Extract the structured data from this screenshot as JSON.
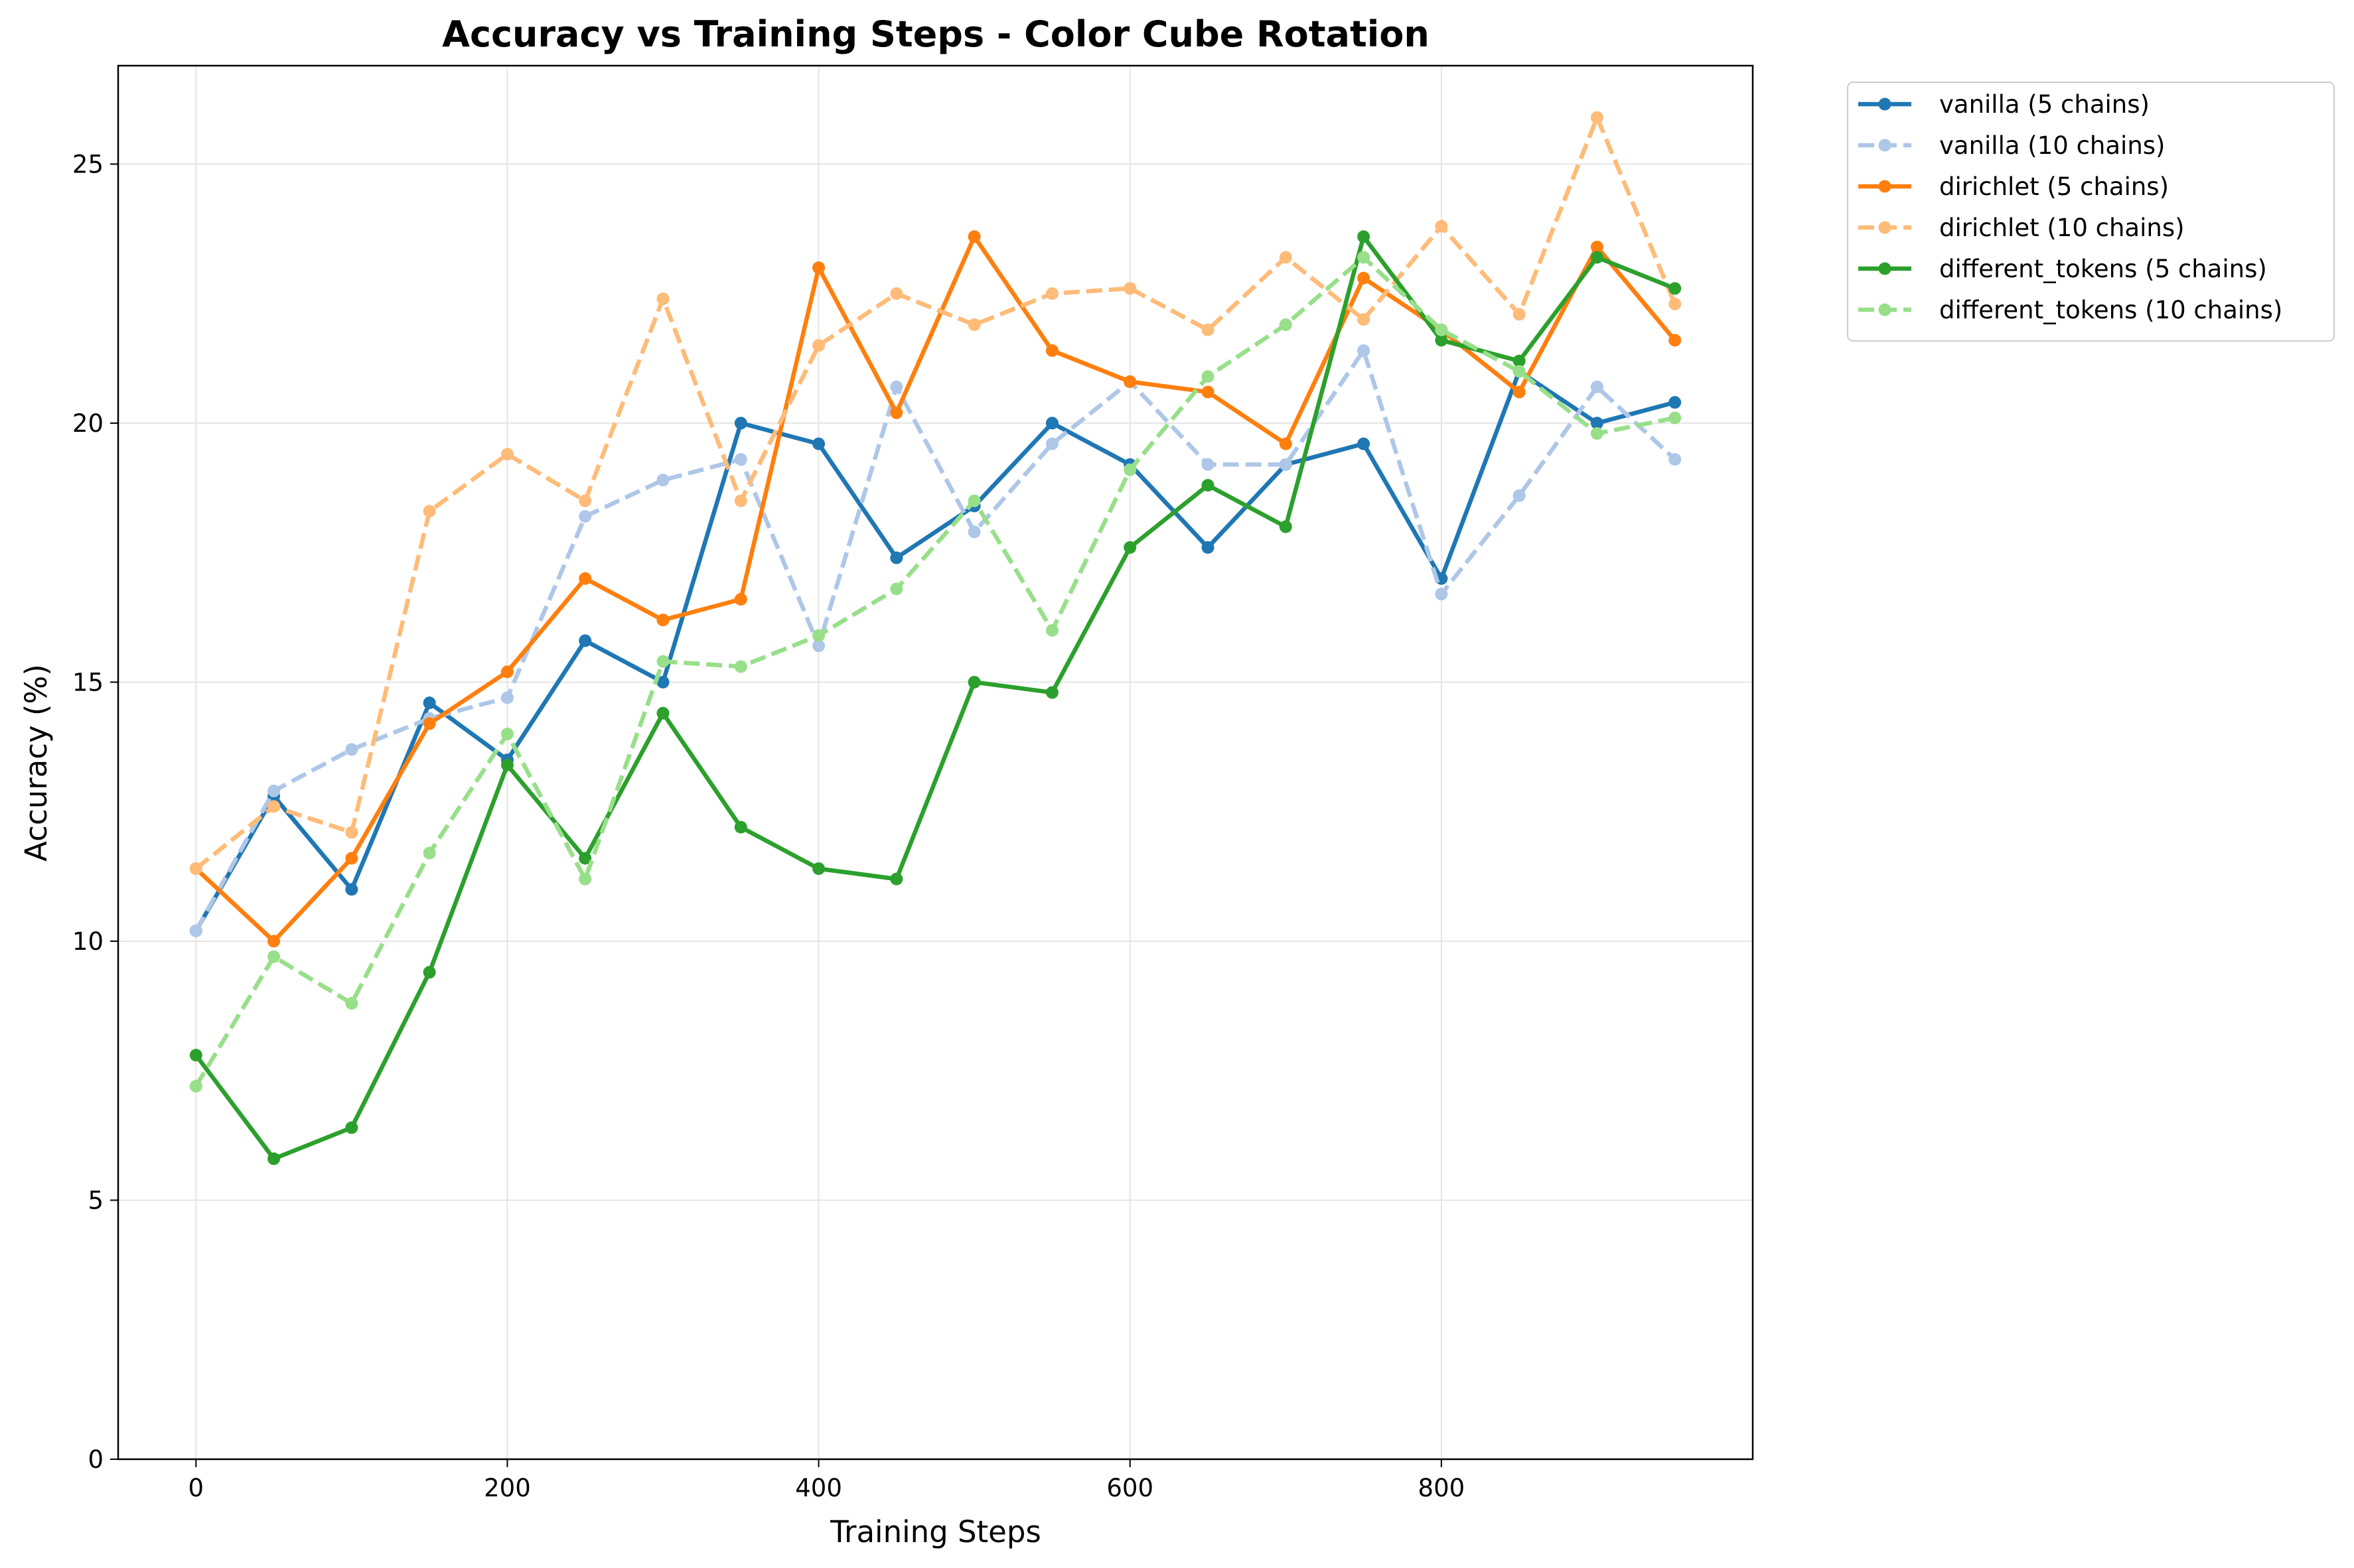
{
  "chart_data": {
    "type": "line",
    "title": "Accuracy vs Training Steps - Color Cube Rotation",
    "xlabel": "Training Steps",
    "ylabel": "Accuracy (%)",
    "xlim": [
      -50,
      1000
    ],
    "ylim": [
      0,
      26.9
    ],
    "xticks": [
      0,
      200,
      400,
      600,
      800
    ],
    "yticks": [
      0,
      5,
      10,
      15,
      20,
      25
    ],
    "grid": true,
    "legend_position": "outside-top-right",
    "x": [
      0,
      50,
      100,
      150,
      200,
      250,
      300,
      350,
      400,
      450,
      500,
      550,
      600,
      650,
      700,
      750,
      800,
      850,
      900,
      950
    ],
    "series": [
      {
        "name": "vanilla (5 chains)",
        "color": "#1f77b4",
        "dashed": false,
        "values": [
          10.2,
          12.8,
          11.0,
          14.6,
          13.5,
          15.8,
          15.0,
          20.0,
          19.6,
          17.4,
          18.4,
          20.0,
          19.2,
          17.6,
          19.2,
          19.6,
          17.0,
          21.0,
          20.0,
          20.4
        ]
      },
      {
        "name": "vanilla (10 chains)",
        "color": "#aec7e8",
        "dashed": true,
        "values": [
          10.2,
          12.9,
          13.7,
          14.3,
          14.7,
          18.2,
          18.9,
          19.3,
          15.7,
          20.7,
          17.9,
          19.6,
          20.8,
          19.2,
          19.2,
          21.4,
          16.7,
          18.6,
          20.7,
          19.3
        ]
      },
      {
        "name": "dirichlet (5 chains)",
        "color": "#ff7f0e",
        "dashed": false,
        "values": [
          11.4,
          10.0,
          11.6,
          14.2,
          15.2,
          17.0,
          16.2,
          16.6,
          23.0,
          20.2,
          23.6,
          21.4,
          20.8,
          20.6,
          19.6,
          22.8,
          21.8,
          20.6,
          23.4,
          21.6
        ]
      },
      {
        "name": "dirichlet (10 chains)",
        "color": "#ffbb78",
        "dashed": true,
        "values": [
          11.4,
          12.6,
          12.1,
          18.3,
          19.4,
          18.5,
          22.4,
          18.5,
          21.5,
          22.5,
          21.9,
          22.5,
          22.6,
          21.8,
          23.2,
          22.0,
          23.8,
          22.1,
          25.9,
          22.3
        ]
      },
      {
        "name": "different_tokens (5 chains)",
        "color": "#2ca02c",
        "dashed": false,
        "values": [
          7.8,
          5.8,
          6.4,
          9.4,
          13.4,
          11.6,
          14.4,
          12.2,
          11.4,
          11.2,
          15.0,
          14.8,
          17.6,
          18.8,
          18.0,
          23.6,
          21.6,
          21.2,
          23.2,
          22.6
        ]
      },
      {
        "name": "different_tokens (10 chains)",
        "color": "#98df8a",
        "dashed": true,
        "values": [
          7.2,
          9.7,
          8.8,
          11.7,
          14.0,
          11.2,
          15.4,
          15.3,
          15.9,
          16.8,
          18.5,
          16.0,
          19.1,
          20.9,
          21.9,
          23.2,
          21.8,
          21.0,
          19.8,
          20.1
        ]
      }
    ]
  }
}
